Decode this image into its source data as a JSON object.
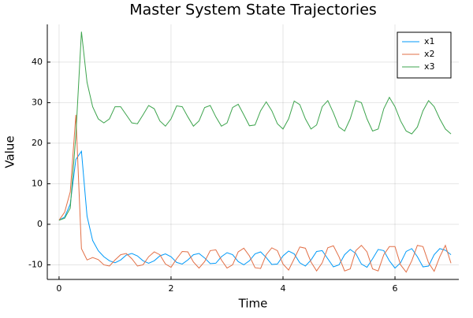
{
  "chart_data": {
    "type": "line",
    "title": "Master System State Trajectories",
    "xlabel": "Time",
    "ylabel": "Value",
    "x": [
      0,
      0.1,
      0.2,
      0.3,
      0.4,
      0.5,
      0.6,
      0.7,
      0.8,
      0.9,
      1,
      1.1,
      1.2,
      1.3,
      1.4,
      1.5,
      1.6,
      1.7,
      1.8,
      1.9,
      2,
      2.1,
      2.2,
      2.3,
      2.4,
      2.5,
      2.6,
      2.7,
      2.8,
      2.9,
      3,
      3.1,
      3.2,
      3.3,
      3.4,
      3.5,
      3.6,
      3.7,
      3.8,
      3.9,
      4,
      4.1,
      4.2,
      4.3,
      4.4,
      4.5,
      4.6,
      4.7,
      4.8,
      4.9,
      5,
      5.1,
      5.2,
      5.3,
      5.4,
      5.5,
      5.6,
      5.7,
      5.8,
      5.9,
      6,
      6.1,
      6.2,
      6.3,
      6.4,
      6.5,
      6.6,
      6.7,
      6.8,
      6.9,
      7
    ],
    "series": [
      {
        "name": "x1",
        "color": "#009af9",
        "values": [
          1,
          1.8,
          5,
          16,
          18,
          2,
          -4,
          -6.5,
          -8,
          -9,
          -9.5,
          -8.8,
          -7.6,
          -7.2,
          -7.8,
          -9,
          -9.6,
          -9,
          -7.8,
          -7.3,
          -8,
          -9.4,
          -9.8,
          -8.8,
          -7.5,
          -7.2,
          -8.3,
          -9.7,
          -9.6,
          -8,
          -7,
          -7.5,
          -9.2,
          -10,
          -9,
          -7.3,
          -6.8,
          -8.2,
          -9.9,
          -9.8,
          -7.8,
          -6.6,
          -7.3,
          -9.5,
          -10.3,
          -8.8,
          -6.7,
          -6.5,
          -8.5,
          -10.5,
          -10,
          -7.5,
          -6.2,
          -7.2,
          -9.8,
          -10.6,
          -8.5,
          -6.2,
          -6.5,
          -9,
          -10.8,
          -9.5,
          -6.7,
          -6,
          -8,
          -10.5,
          -10.3,
          -7.5,
          -6,
          -6.4,
          -7.5
        ]
      },
      {
        "name": "x2",
        "color": "#e26f46",
        "values": [
          1,
          3,
          8,
          27,
          -6,
          -8.8,
          -8.2,
          -8.7,
          -10,
          -10.3,
          -8.8,
          -7.5,
          -7.2,
          -8.5,
          -10.3,
          -10,
          -8,
          -6.8,
          -7.5,
          -9.8,
          -10.6,
          -8.5,
          -6.7,
          -6.8,
          -9.3,
          -10.8,
          -9.2,
          -6.5,
          -6.3,
          -8.8,
          -10.8,
          -10,
          -6.8,
          -5.9,
          -7.8,
          -10.7,
          -10.9,
          -7.5,
          -5.8,
          -6.5,
          -9.8,
          -11.3,
          -8.5,
          -5.6,
          -5.9,
          -9.3,
          -11.5,
          -9.5,
          -5.8,
          -5.3,
          -8,
          -11.5,
          -11,
          -6.5,
          -5.2,
          -6.8,
          -11,
          -11.5,
          -7.5,
          -5.5,
          -5.5,
          -10,
          -11.8,
          -9,
          -5.2,
          -5.5,
          -9.5,
          -11.6,
          -8,
          -5.2,
          -9.6
        ]
      },
      {
        "name": "x3",
        "color": "#3da44d",
        "values": [
          1,
          1.5,
          4,
          22,
          47.5,
          35,
          29,
          26,
          25,
          26,
          29,
          29,
          27,
          25,
          24.8,
          27,
          29.3,
          28.5,
          25.5,
          24.2,
          26,
          29.2,
          29,
          26.5,
          24.2,
          25.5,
          28.8,
          29.3,
          26.5,
          24.2,
          25,
          28.8,
          29.6,
          27,
          24.3,
          24.5,
          28,
          30.2,
          28,
          24.8,
          23.5,
          26,
          30.4,
          29.5,
          26,
          23.5,
          24.5,
          29,
          30.5,
          27.5,
          24,
          23,
          26,
          30.5,
          30,
          26,
          23,
          23.5,
          28.5,
          31.3,
          29,
          25.5,
          23,
          22.3,
          24,
          28,
          30.5,
          29,
          26,
          23.5,
          22.3
        ]
      }
    ],
    "xlim": [
      -0.21,
      7.14
    ],
    "ylim": [
      -13.6,
      49.3
    ],
    "xticks": [
      0,
      2,
      4,
      6
    ],
    "yticks": [
      -10,
      0,
      10,
      20,
      30,
      40
    ],
    "grid": true,
    "legend": "top-right"
  }
}
